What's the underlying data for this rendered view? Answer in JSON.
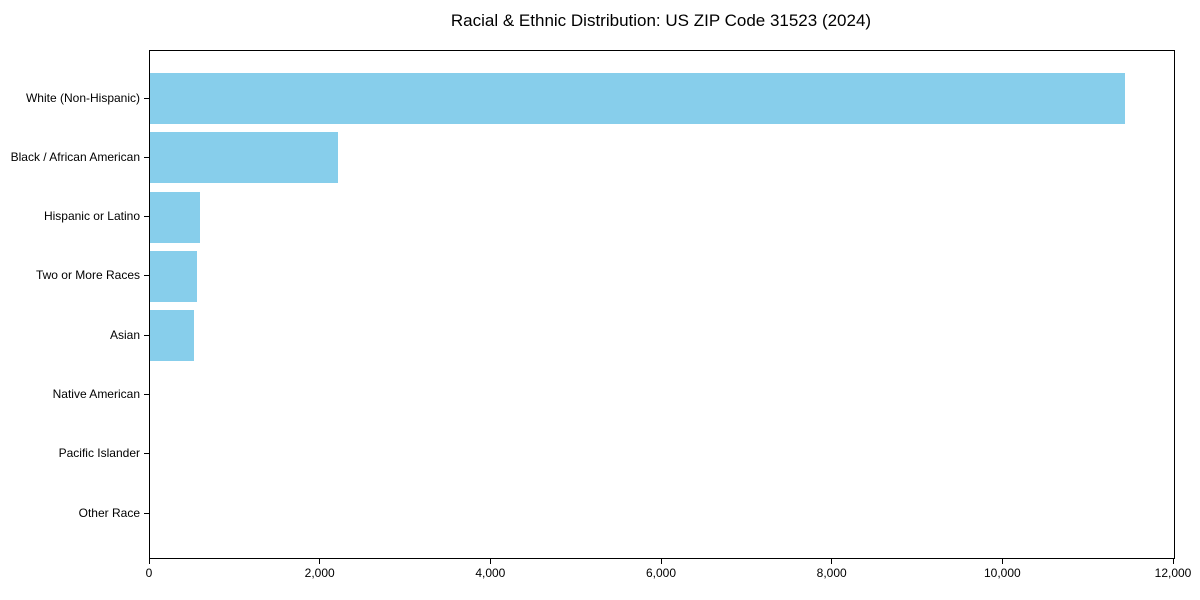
{
  "chart_data": {
    "type": "bar",
    "orientation": "horizontal",
    "title": "Racial & Ethnic Distribution: US ZIP Code 31523 (2024)",
    "categories": [
      "White (Non-Hispanic)",
      "Black / African American",
      "Hispanic or Latino",
      "Two or More Races",
      "Asian",
      "Native American",
      "Pacific Islander",
      "Other Race"
    ],
    "values": [
      11430,
      2200,
      590,
      550,
      520,
      0,
      0,
      0
    ],
    "xlabel": "",
    "ylabel": "",
    "xlim": [
      0,
      12000
    ],
    "x_ticks": [
      0,
      2000,
      4000,
      6000,
      8000,
      10000,
      12000
    ],
    "x_tick_labels": [
      "0",
      "2,000",
      "4,000",
      "6,000",
      "8,000",
      "10,000",
      "12,000"
    ],
    "bar_color": "#87CEEB",
    "text_color": "#000000",
    "grid": false,
    "legend": "none"
  }
}
